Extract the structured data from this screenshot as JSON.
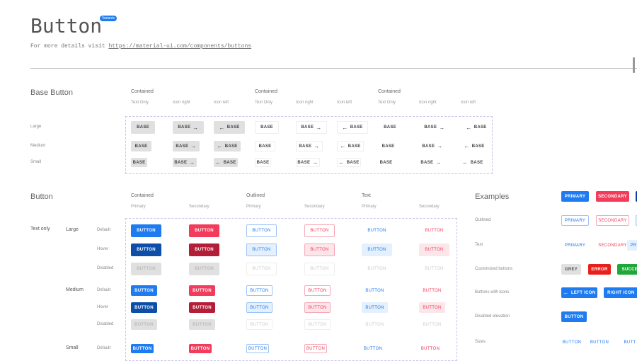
{
  "header": {
    "title": "Button",
    "badge": "Variants",
    "subtitle_prefix": "For more details visit",
    "link": "https://material-ui.com/components/buttons"
  },
  "colors": {
    "primary": "#1e7bf0",
    "secondary": "#f33b5b",
    "error": "#e8201c",
    "success": "#1ea83a",
    "grey": "#e0e0e0"
  },
  "base_section": {
    "title": "Base Button",
    "groups": [
      "Contained",
      "Contained",
      "Contained"
    ],
    "columns": [
      "Text Only",
      "Icon right",
      "Icon left",
      "Text Only",
      "Icon right",
      "Icon left",
      "Text Only",
      "Icon right",
      "Icon left"
    ],
    "sizes": [
      "Large",
      "Medium",
      "Small"
    ],
    "button_label": "BASE",
    "icons": {
      "right": "arrow-right-icon",
      "left": "arrow-left-icon"
    }
  },
  "button_section": {
    "title": "Button",
    "groups": [
      "Contained",
      "Outlined",
      "Text"
    ],
    "columns": [
      "Primary",
      "Secondary",
      "Primary",
      "Secondary",
      "Primary",
      "Secondary"
    ],
    "category": "Text only",
    "sizes": [
      "Large",
      "Medium",
      "Small"
    ],
    "states": [
      "Default",
      "Hover",
      "Disabled"
    ],
    "button_label": "BUTTON"
  },
  "examples": {
    "title": "Examples",
    "rows": [
      {
        "label": "",
        "buttons": [
          "PRIMARY",
          "SECONDARY",
          ""
        ]
      },
      {
        "label": "Outlined",
        "buttons": [
          "PRIMARY",
          "SECONDARY",
          ""
        ]
      },
      {
        "label": "Text",
        "buttons": [
          "PRIMARY",
          "SECONDARY",
          "PRI"
        ]
      },
      {
        "label": "Customized buttons",
        "buttons": [
          "GREY",
          "ERROR",
          "SUCCES"
        ]
      },
      {
        "label": "Buttons with icons",
        "buttons": [
          "LEFT ICON",
          "RIGHT ICON"
        ]
      },
      {
        "label": "Disabled elevation",
        "buttons": [
          "BUTTON"
        ]
      },
      {
        "label": "Sizes",
        "buttons": [
          "BUTTON",
          "BUTTON",
          "BUTT"
        ]
      }
    ]
  }
}
